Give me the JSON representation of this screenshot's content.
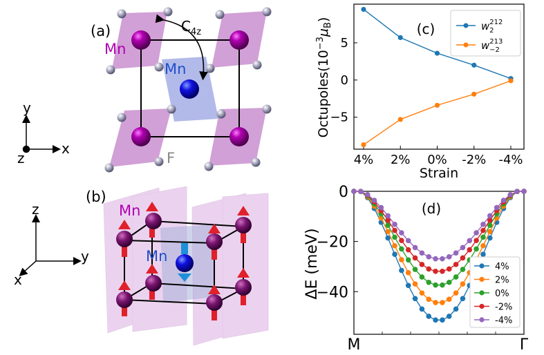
{
  "panel_a": {
    "label": "(a)",
    "mn_corner_label": "Mn",
    "mn_center_label": "Mn",
    "rotation_label": "C",
    "rotation_sub": "4z",
    "fluorine_label": "F",
    "axes": {
      "y": "y",
      "x": "x",
      "z": "z"
    },
    "colors": {
      "mn_corner": "#b000b0",
      "mn_center": "#1f4fc8",
      "octahedron_corner": "#c98fcf",
      "octahedron_center": "#aab3e8",
      "fluorine": "#8d8da8"
    }
  },
  "panel_b": {
    "label": "(b)",
    "mn_corner_label": "Mn",
    "mn_center_label": "Mn",
    "axes": {
      "z": "z",
      "y": "y",
      "x": "x"
    },
    "colors": {
      "spin_corner": "#e0202a",
      "spin_center": "#1e8fd8"
    }
  },
  "chart_data": [
    {
      "panel": "(c)",
      "type": "line",
      "xlabel": "Strain",
      "ylabel_main": "Octupoles(10",
      "ylabel_exp": "−3",
      "ylabel_unit": "μ",
      "ylabel_unit_sub": "B",
      "categories": [
        "4%",
        "2%",
        "0%",
        "-2%",
        "-4%"
      ],
      "yticks": [
        -5,
        0,
        5
      ],
      "ytick_labels": [
        "−5",
        "0",
        "5"
      ],
      "ylim": [
        -9.3,
        10.2
      ],
      "series": [
        {
          "name": "w",
          "name_sub": "2",
          "name_sup": "212",
          "color": "#1f77b4",
          "values": [
            9.5,
            5.7,
            3.6,
            2.0,
            0.2
          ]
        },
        {
          "name": "w",
          "name_sub": "−2",
          "name_sup": "213",
          "color": "#ff7f0e",
          "values": [
            -8.7,
            -5.3,
            -3.4,
            -1.9,
            -0.1
          ]
        }
      ]
    },
    {
      "panel": "(d)",
      "type": "line",
      "ylabel": "ΔE (meV)",
      "x_start_label": "M",
      "x_end_label": "Γ",
      "yticks": [
        0,
        -20,
        -40
      ],
      "ytick_labels": [
        "0",
        "−20",
        "−40"
      ],
      "ylim": [
        -57,
        0
      ],
      "xlim": [
        0,
        1
      ],
      "series": [
        {
          "name": "4%",
          "color": "#1f77b4",
          "min": -51.5
        },
        {
          "name": "2%",
          "color": "#ff7f0e",
          "min": -44.5
        },
        {
          "name": "0%",
          "color": "#2ca02c",
          "min": -37.5
        },
        {
          "name": "-2%",
          "color": "#d62728",
          "min": -32.0
        },
        {
          "name": "-4%",
          "color": "#9467bd",
          "min": -27.0
        }
      ]
    }
  ]
}
